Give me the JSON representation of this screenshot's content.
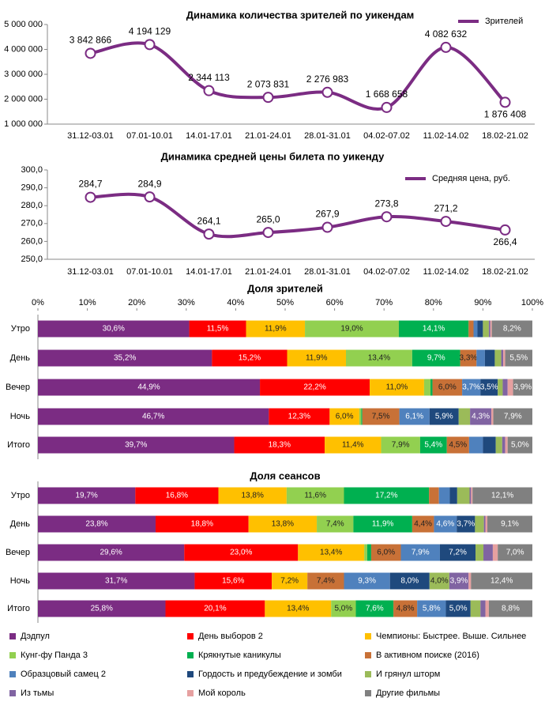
{
  "chart_data": [
    {
      "type": "line",
      "title": "Динамика количества зрителей по уикендам",
      "legend": "top right",
      "smooth": true,
      "categories": [
        "31.12-03.01",
        "07.01-10.01",
        "14.01-17.01",
        "21.01-24.01",
        "28.01-31.01",
        "04.02-07.02",
        "11.02-14.02",
        "18.02-21.02"
      ],
      "series": [
        {
          "name": "Зрителей",
          "color": "#7b2c83",
          "values": [
            3842866,
            4194129,
            2344113,
            2073831,
            2276983,
            1668658,
            4082632,
            1876408
          ],
          "value_labels": [
            "3 842 866",
            "4 194 129",
            "2 344 113",
            "2 073 831",
            "2 276 983",
            "1 668 658",
            "4 082 632",
            "1 876 408"
          ]
        }
      ],
      "ylim": [
        1000000,
        5000000
      ],
      "yticks": [
        {
          "value": 1000000,
          "label": "1 000 000"
        },
        {
          "value": 2000000,
          "label": "2 000 000"
        },
        {
          "value": 3000000,
          "label": "3 000 000"
        },
        {
          "value": 4000000,
          "label": "4 000 000"
        },
        {
          "value": 5000000,
          "label": "5 000 000"
        }
      ]
    },
    {
      "type": "line",
      "title": "Динамика средней цены билета по уикенду",
      "legend": "top right",
      "smooth": true,
      "categories": [
        "31.12-03.01",
        "07.01-10.01",
        "14.01-17.01",
        "21.01-24.01",
        "28.01-31.01",
        "04.02-07.02",
        "11.02-14.02",
        "18.02-21.02"
      ],
      "series": [
        {
          "name": "Средняя цена, руб.",
          "color": "#7b2c83",
          "values": [
            284.7,
            284.9,
            264.1,
            265.0,
            267.9,
            273.8,
            271.2,
            266.4
          ],
          "value_labels": [
            "284,7",
            "284,9",
            "264,1",
            "265,0",
            "267,9",
            "273,8",
            "271,2",
            "266,4"
          ]
        }
      ],
      "ylim": [
        250,
        300
      ],
      "yticks": [
        {
          "value": 250,
          "label": "250,0"
        },
        {
          "value": 260,
          "label": "260,0"
        },
        {
          "value": 270,
          "label": "270,0"
        },
        {
          "value": 280,
          "label": "280,0"
        },
        {
          "value": 290,
          "label": "290,0"
        },
        {
          "value": 300,
          "label": "300,0"
        }
      ]
    },
    {
      "type": "bar",
      "orientation": "horizontal",
      "stacked": true,
      "title": "Доля зрителей",
      "legend": "bottom",
      "categories": [
        "Утро",
        "День",
        "Вечер",
        "Ночь",
        "Итого"
      ],
      "xlim": [
        0,
        100
      ],
      "xticks": [
        {
          "value": 0,
          "label": "0%"
        },
        {
          "value": 10,
          "label": "10%"
        },
        {
          "value": 20,
          "label": "20%"
        },
        {
          "value": 30,
          "label": "30%"
        },
        {
          "value": 40,
          "label": "40%"
        },
        {
          "value": 50,
          "label": "50%"
        },
        {
          "value": 60,
          "label": "60%"
        },
        {
          "value": 70,
          "label": "70%"
        },
        {
          "value": 80,
          "label": "80%"
        },
        {
          "value": 90,
          "label": "90%"
        },
        {
          "value": 100,
          "label": "100%"
        }
      ],
      "series": [
        {
          "name": "Дэдпул",
          "color": "#7b2c83",
          "values": [
            30.6,
            35.2,
            44.9,
            46.7,
            39.7
          ],
          "value_labels": [
            "30,6%",
            "35,2%",
            "44,9%",
            "46,7%",
            "39,7%"
          ]
        },
        {
          "name": "День выборов 2",
          "color": "#ff0000",
          "values": [
            11.5,
            15.2,
            22.2,
            12.3,
            18.3
          ],
          "value_labels": [
            "11,5%",
            "15,2%",
            "22,2%",
            "12,3%",
            "18,3%"
          ]
        },
        {
          "name": "Чемпионы: Быстрее. Выше. Сильнее",
          "color": "#ffc000",
          "values": [
            11.9,
            11.9,
            11.0,
            6.0,
            11.4
          ],
          "value_labels": [
            "11,9%",
            "11,9%",
            "11,0%",
            "6,0%",
            "11,4%"
          ]
        },
        {
          "name": "Кунг-фу Панда 3",
          "color": "#92d050",
          "values": [
            19.0,
            13.4,
            1.3,
            0.4,
            7.9
          ],
          "value_labels": [
            "19,0%",
            "13,4%",
            null,
            null,
            "7,9%"
          ]
        },
        {
          "name": "Крякнутые каникулы",
          "color": "#00b050",
          "values": [
            14.1,
            9.7,
            0.4,
            0.2,
            5.4
          ],
          "value_labels": [
            "14,1%",
            "9,7%",
            null,
            null,
            "5,4%"
          ]
        },
        {
          "name": "В активном поиске (2016)",
          "color": "#c87137",
          "values": [
            1.0,
            3.3,
            6.0,
            7.5,
            4.5
          ],
          "value_labels": [
            null,
            "3,3%",
            "6,0%",
            "7,5%",
            "4,5%"
          ]
        },
        {
          "name": "Образцовый самец 2",
          "color": "#4f81bd",
          "values": [
            0.8,
            1.7,
            3.7,
            6.1,
            2.8
          ],
          "value_labels": [
            null,
            null,
            "3,7%",
            "6,1%",
            null
          ]
        },
        {
          "name": "Гордость и предубеждение и зомби",
          "color": "#1f497d",
          "values": [
            1.1,
            2.0,
            3.5,
            5.9,
            2.6
          ],
          "value_labels": [
            null,
            null,
            "3,5%",
            "5,9%",
            null
          ]
        },
        {
          "name": "И грянул шторм",
          "color": "#9bbb59",
          "values": [
            1.2,
            1.3,
            1.0,
            2.3,
            1.3
          ],
          "value_labels": [
            null,
            null,
            null,
            null,
            null
          ]
        },
        {
          "name": "Из тьмы",
          "color": "#8064a2",
          "values": [
            0.3,
            0.4,
            1.0,
            4.3,
            0.6
          ],
          "value_labels": [
            null,
            null,
            null,
            "4,3%",
            null
          ]
        },
        {
          "name": "Мой король",
          "color": "#e6a0a0",
          "values": [
            0.3,
            0.4,
            1.1,
            0.4,
            0.5
          ],
          "value_labels": [
            null,
            null,
            null,
            null,
            null
          ]
        },
        {
          "name": "Другие фильмы",
          "color": "#808080",
          "values": [
            8.2,
            5.5,
            3.9,
            7.9,
            5.0
          ],
          "value_labels": [
            "8,2%",
            "5,5%",
            "3,9%",
            "7,9%",
            "5,0%"
          ]
        }
      ]
    },
    {
      "type": "bar",
      "orientation": "horizontal",
      "stacked": true,
      "title": "Доля сеансов",
      "categories": [
        "Утро",
        "День",
        "Вечер",
        "Ночь",
        "Итого"
      ],
      "xlim": [
        0,
        100
      ],
      "series": [
        {
          "color": "#7b2c83",
          "values": [
            19.7,
            23.8,
            29.6,
            31.7,
            25.8
          ],
          "value_labels": [
            "19,7%",
            "23,8%",
            "29,6%",
            "31,7%",
            "25,8%"
          ]
        },
        {
          "color": "#ff0000",
          "values": [
            16.8,
            18.8,
            23.0,
            15.6,
            20.1
          ],
          "value_labels": [
            "16,8%",
            "18,8%",
            "23,0%",
            "15,6%",
            "20,1%"
          ]
        },
        {
          "color": "#ffc000",
          "values": [
            13.8,
            13.8,
            13.4,
            7.2,
            13.4
          ],
          "value_labels": [
            "13,8%",
            "13,8%",
            "13,4%",
            "7,2%",
            "13,4%"
          ]
        },
        {
          "color": "#92d050",
          "values": [
            11.6,
            7.4,
            0.6,
            0,
            5.0
          ],
          "value_labels": [
            "11,6%",
            "7,4%",
            null,
            null,
            "5,0%"
          ]
        },
        {
          "color": "#00b050",
          "values": [
            17.2,
            11.9,
            0.8,
            0,
            7.6
          ],
          "value_labels": [
            "17,2%",
            "11,9%",
            null,
            null,
            "7,6%"
          ]
        },
        {
          "color": "#c87137",
          "values": [
            2.0,
            4.4,
            6.0,
            7.4,
            4.8
          ],
          "value_labels": [
            null,
            "4,4%",
            "6,0%",
            "7,4%",
            "4,8%"
          ]
        },
        {
          "color": "#4f81bd",
          "values": [
            2.2,
            4.6,
            7.9,
            9.3,
            5.8
          ],
          "value_labels": [
            null,
            "4,6%",
            "7,9%",
            "9,3%",
            "5,8%"
          ]
        },
        {
          "color": "#1f497d",
          "values": [
            1.5,
            3.7,
            7.2,
            8.0,
            5.0
          ],
          "value_labels": [
            null,
            "3,7%",
            "7,2%",
            "8,0%",
            "5,0%"
          ]
        },
        {
          "color": "#9bbb59",
          "values": [
            2.5,
            1.8,
            1.6,
            4.0,
            2.0
          ],
          "value_labels": [
            null,
            null,
            null,
            "4,0%",
            null
          ]
        },
        {
          "color": "#8064a2",
          "values": [
            0.3,
            0.3,
            1.9,
            3.9,
            1.0
          ],
          "value_labels": [
            null,
            null,
            null,
            "3,9%",
            null
          ]
        },
        {
          "color": "#e6a0a0",
          "values": [
            0.3,
            0.4,
            1.0,
            0.5,
            0.7
          ],
          "value_labels": [
            null,
            null,
            null,
            null,
            null
          ]
        },
        {
          "color": "#808080",
          "values": [
            12.1,
            9.1,
            7.0,
            12.4,
            8.8
          ],
          "value_labels": [
            "12,1%",
            "9,1%",
            "7,0%",
            "12,4%",
            "8,8%"
          ]
        }
      ]
    }
  ]
}
